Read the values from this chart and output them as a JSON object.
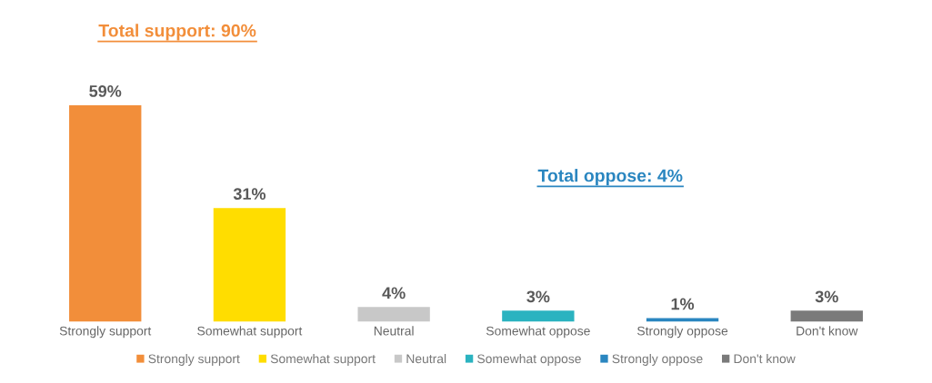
{
  "chart_data": {
    "type": "bar",
    "categories": [
      "Strongly support",
      "Somewhat support",
      "Neutral",
      "Somewhat oppose",
      "Strongly oppose",
      "Don't know"
    ],
    "series": [
      {
        "name": "Strongly support",
        "color": "#f28e3a",
        "values": [
          59,
          null,
          null,
          null,
          null,
          null
        ],
        "value_labels": [
          "59%",
          null,
          null,
          null,
          null,
          null
        ]
      },
      {
        "name": "Somewhat support",
        "color": "#ffdd00",
        "values": [
          null,
          31,
          null,
          null,
          null,
          null
        ],
        "value_labels": [
          null,
          "31%",
          null,
          null,
          null,
          null
        ]
      },
      {
        "name": "Neutral",
        "color": "#c8c8c8",
        "values": [
          null,
          null,
          4,
          null,
          null,
          null
        ],
        "value_labels": [
          null,
          null,
          "4%",
          null,
          null,
          null
        ]
      },
      {
        "name": "Somewhat oppose",
        "color": "#2bb3c0",
        "values": [
          null,
          null,
          null,
          3,
          null,
          null
        ],
        "value_labels": [
          null,
          null,
          null,
          "3%",
          null,
          null
        ]
      },
      {
        "name": "Strongly oppose",
        "color": "#2a86c0",
        "values": [
          null,
          null,
          null,
          null,
          1,
          null
        ],
        "value_labels": [
          null,
          null,
          null,
          null,
          "1%",
          null
        ]
      },
      {
        "name": "Don't know",
        "color": "#7a7a7a",
        "values": [
          null,
          null,
          null,
          null,
          null,
          3
        ],
        "value_labels": [
          null,
          null,
          null,
          null,
          null,
          "3%"
        ]
      }
    ],
    "annotations": [
      "Total support: 90%",
      "Total oppose: 4%"
    ],
    "legend": "bottom"
  }
}
